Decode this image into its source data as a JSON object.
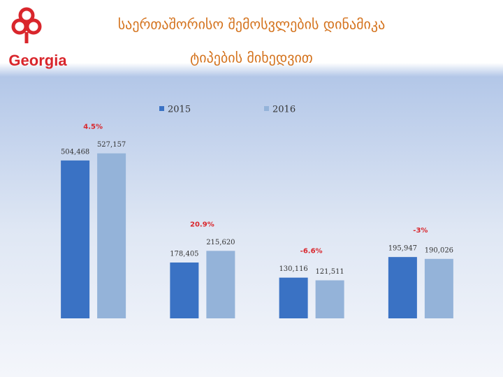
{
  "brand": "Georgia",
  "chart_data": {
    "type": "bar",
    "title": "საერთაშორისო შემოსვლების დინამიკა",
    "subtitle": "ტიპების მიხედვით",
    "categories": [
      null,
      null,
      null,
      null
    ],
    "series": [
      {
        "name": "2015",
        "color": "#3a72c4",
        "values": [
          504468,
          178405,
          130116,
          195947
        ],
        "value_labels": [
          "504,468",
          "178,405",
          "130,116",
          "195,947"
        ]
      },
      {
        "name": "2016",
        "color": "#94b3d9",
        "values": [
          527157,
          215620,
          121511,
          190026
        ],
        "value_labels": [
          "527,157",
          "215,620",
          "121,511",
          "190,026"
        ]
      }
    ],
    "annotations": [
      "4.5%",
      "20.9%",
      "-6.6%",
      "-3%"
    ],
    "ylim": [
      0,
      600000
    ]
  }
}
